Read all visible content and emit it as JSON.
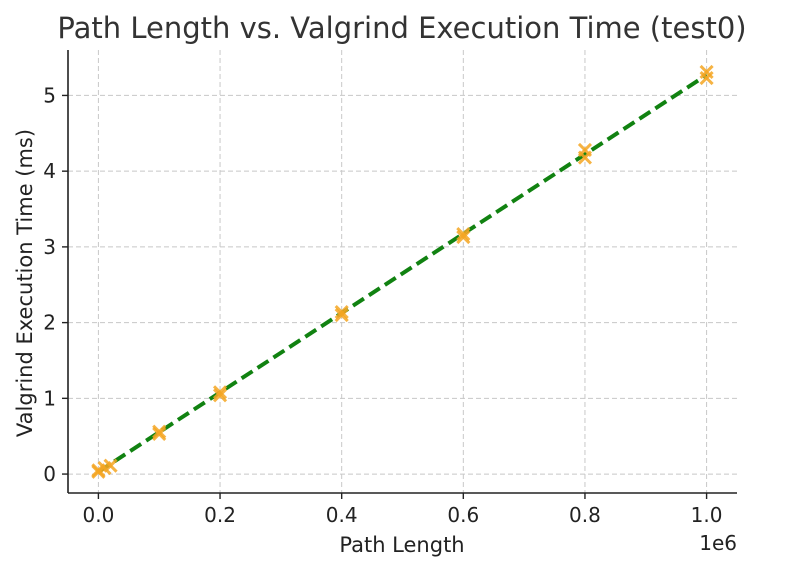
{
  "chart_data": {
    "type": "scatter",
    "title": "Path Length vs. Valgrind Execution Time (test0)",
    "xlabel": "Path Length",
    "ylabel": "Valgrind Execution Time (ms)",
    "x_offset_label": "1e6",
    "xlim": [
      -0.05,
      1.05
    ],
    "ylim": [
      -0.25,
      5.6
    ],
    "x_ticks": [
      0.0,
      0.2,
      0.4,
      0.6,
      0.8,
      1.0
    ],
    "x_tick_labels": [
      "0.0",
      "0.2",
      "0.4",
      "0.6",
      "0.8",
      "1.0"
    ],
    "y_ticks": [
      0,
      1,
      2,
      3,
      4,
      5
    ],
    "y_tick_labels": [
      "0",
      "1",
      "2",
      "3",
      "4",
      "5"
    ],
    "grid": true,
    "series": [
      {
        "kind": "scatter",
        "marker": "x",
        "color": "#f5a623",
        "x": [
          0.0,
          0.0,
          0.01,
          0.02,
          0.1,
          0.1,
          0.2,
          0.2,
          0.4,
          0.4,
          0.6,
          0.6,
          0.8,
          0.8,
          1.0,
          1.0
        ],
        "y": [
          0.03,
          0.05,
          0.08,
          0.11,
          0.53,
          0.56,
          1.04,
          1.08,
          2.1,
          2.14,
          3.13,
          3.17,
          4.18,
          4.28,
          5.23,
          5.31
        ]
      },
      {
        "kind": "line",
        "style": "dashed",
        "color": "#118211",
        "x": [
          0.0,
          1.0
        ],
        "y": [
          0.03,
          5.27
        ]
      }
    ]
  }
}
